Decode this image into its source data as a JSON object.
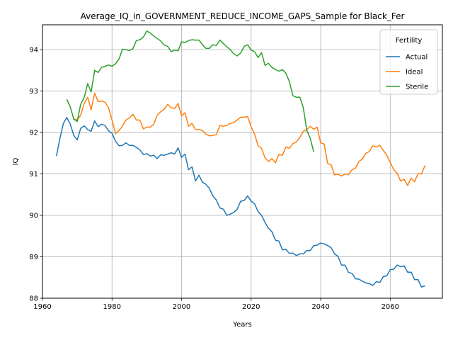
{
  "chart_data": {
    "type": "line",
    "title": "Average_IQ_in_GOVERNMENT_REDUCE_INCOME_GAPS_Sample for Black_Fer",
    "xlabel": "Years",
    "ylabel": "IQ",
    "xlim": [
      1960,
      2075
    ],
    "ylim": [
      88,
      94.6
    ],
    "xticks": [
      1960,
      1980,
      2000,
      2020,
      2040,
      2060
    ],
    "yticks": [
      88,
      89,
      90,
      91,
      92,
      93,
      94
    ],
    "grid": true,
    "legend": {
      "title": "Fertility",
      "location": "upper right"
    },
    "series": [
      {
        "name": "Actual",
        "color": "#1f77b4",
        "x": [
          1964,
          1965,
          1966,
          1967,
          1968,
          1969,
          1970,
          1971,
          1972,
          1973,
          1974,
          1975,
          1976,
          1977,
          1978,
          1979,
          1980,
          1981,
          1982,
          1983,
          1984,
          1985,
          1986,
          1987,
          1988,
          1989,
          1990,
          1991,
          1992,
          1993,
          1994,
          1995,
          1996,
          1997,
          1998,
          1999,
          2000,
          2001,
          2002,
          2003,
          2004,
          2005,
          2006,
          2007,
          2008,
          2009,
          2010,
          2011,
          2012,
          2013,
          2014,
          2015,
          2016,
          2017,
          2018,
          2019,
          2020,
          2021,
          2022,
          2023,
          2024,
          2025,
          2026,
          2027,
          2028,
          2029,
          2030,
          2031,
          2032,
          2033,
          2034,
          2035,
          2036,
          2037,
          2038,
          2039,
          2040,
          2041,
          2042,
          2043,
          2044,
          2045,
          2046,
          2047,
          2048,
          2049,
          2050,
          2051,
          2052,
          2053,
          2054,
          2055,
          2056,
          2057,
          2058,
          2059,
          2060,
          2061,
          2062,
          2063,
          2064,
          2065,
          2066,
          2067,
          2068,
          2069,
          2070
        ],
        "values": [
          91.43,
          91.85,
          92.22,
          92.36,
          92.2,
          91.93,
          91.82,
          92.1,
          92.16,
          92.07,
          92.03,
          92.28,
          92.14,
          92.2,
          92.17,
          92.04,
          91.98,
          91.79,
          91.68,
          91.69,
          91.75,
          91.69,
          91.69,
          91.64,
          91.58,
          91.47,
          91.49,
          91.43,
          91.45,
          91.37,
          91.46,
          91.45,
          91.48,
          91.51,
          91.48,
          91.63,
          91.4,
          91.48,
          91.1,
          91.17,
          90.83,
          90.97,
          90.8,
          90.75,
          90.65,
          90.47,
          90.37,
          90.18,
          90.15,
          90.0,
          90.03,
          90.07,
          90.15,
          90.34,
          90.36,
          90.47,
          90.34,
          90.28,
          90.09,
          90.0,
          89.83,
          89.69,
          89.6,
          89.4,
          89.38,
          89.17,
          89.18,
          89.08,
          89.09,
          89.03,
          89.07,
          89.07,
          89.15,
          89.15,
          89.27,
          89.28,
          89.33,
          89.31,
          89.27,
          89.22,
          89.07,
          89.01,
          88.8,
          88.8,
          88.62,
          88.6,
          88.47,
          88.46,
          88.41,
          88.37,
          88.35,
          88.31,
          88.4,
          88.38,
          88.52,
          88.54,
          88.69,
          88.7,
          88.8,
          88.76,
          88.78,
          88.63,
          88.63,
          88.45,
          88.45,
          88.27,
          88.3
        ]
      },
      {
        "name": "Ideal",
        "color": "#ff7f0e",
        "x": [
          1969,
          1970,
          1971,
          1972,
          1973,
          1974,
          1975,
          1976,
          1977,
          1978,
          1979,
          1980,
          1981,
          1982,
          1983,
          1984,
          1985,
          1986,
          1987,
          1988,
          1989,
          1990,
          1991,
          1992,
          1993,
          1994,
          1995,
          1996,
          1997,
          1998,
          1999,
          2000,
          2001,
          2002,
          2003,
          2004,
          2005,
          2006,
          2007,
          2008,
          2009,
          2010,
          2011,
          2012,
          2013,
          2014,
          2015,
          2016,
          2017,
          2018,
          2019,
          2020,
          2021,
          2022,
          2023,
          2024,
          2025,
          2026,
          2027,
          2028,
          2029,
          2030,
          2031,
          2032,
          2033,
          2034,
          2035,
          2036,
          2037,
          2038,
          2039,
          2040,
          2041,
          2042,
          2043,
          2044,
          2045,
          2046,
          2047,
          2048,
          2049,
          2050,
          2051,
          2052,
          2053,
          2054,
          2055,
          2056,
          2057,
          2058,
          2059,
          2060,
          2061,
          2062,
          2063,
          2064,
          2065,
          2066,
          2067,
          2068,
          2069,
          2070
        ],
        "values": [
          92.33,
          92.3,
          92.42,
          92.7,
          92.85,
          92.55,
          92.95,
          92.75,
          92.76,
          92.73,
          92.6,
          92.3,
          91.97,
          92.05,
          92.15,
          92.3,
          92.35,
          92.44,
          92.3,
          92.3,
          92.09,
          92.13,
          92.13,
          92.2,
          92.42,
          92.5,
          92.56,
          92.68,
          92.6,
          92.58,
          92.7,
          92.4,
          92.48,
          92.15,
          92.22,
          92.07,
          92.07,
          92.05,
          91.96,
          91.92,
          91.93,
          91.95,
          92.17,
          92.15,
          92.17,
          92.22,
          92.24,
          92.3,
          92.37,
          92.37,
          92.38,
          92.14,
          91.96,
          91.68,
          91.62,
          91.39,
          91.3,
          91.37,
          91.27,
          91.47,
          91.45,
          91.65,
          91.62,
          91.73,
          91.77,
          91.88,
          92.03,
          92.07,
          92.15,
          92.08,
          92.13,
          91.75,
          91.72,
          91.25,
          91.22,
          90.98,
          90.99,
          90.95,
          91.0,
          90.98,
          91.1,
          91.14,
          91.3,
          91.36,
          91.5,
          91.54,
          91.68,
          91.65,
          91.69,
          91.57,
          91.45,
          91.28,
          91.1,
          91.02,
          90.83,
          90.87,
          90.72,
          90.9,
          90.81,
          91.01,
          91.0,
          91.2
        ]
      },
      {
        "name": "Sterile",
        "color": "#2ca02c",
        "x": [
          1967,
          1968,
          1969,
          1970,
          1971,
          1972,
          1973,
          1974,
          1975,
          1976,
          1977,
          1978,
          1979,
          1980,
          1981,
          1982,
          1983,
          1984,
          1985,
          1986,
          1987,
          1988,
          1989,
          1990,
          1991,
          1992,
          1993,
          1994,
          1995,
          1996,
          1997,
          1998,
          1999,
          2000,
          2001,
          2002,
          2003,
          2004,
          2005,
          2006,
          2007,
          2008,
          2009,
          2010,
          2011,
          2012,
          2013,
          2014,
          2015,
          2016,
          2017,
          2018,
          2019,
          2020,
          2021,
          2022,
          2023,
          2024,
          2025,
          2026,
          2027,
          2028,
          2029,
          2030,
          2031,
          2032,
          2033,
          2034,
          2035,
          2036,
          2037,
          2038
        ],
        "values": [
          92.8,
          92.62,
          92.32,
          92.27,
          92.68,
          92.85,
          93.18,
          92.98,
          93.5,
          93.45,
          93.57,
          93.6,
          93.63,
          93.6,
          93.66,
          93.77,
          94.01,
          94.0,
          93.98,
          94.02,
          94.22,
          94.24,
          94.3,
          94.45,
          94.4,
          94.33,
          94.27,
          94.21,
          94.11,
          94.08,
          93.95,
          93.99,
          93.97,
          94.19,
          94.17,
          94.22,
          94.24,
          94.23,
          94.23,
          94.12,
          94.03,
          94.03,
          94.12,
          94.1,
          94.23,
          94.15,
          94.07,
          94.0,
          93.9,
          93.85,
          93.92,
          94.08,
          94.12,
          93.99,
          93.95,
          93.81,
          93.93,
          93.62,
          93.67,
          93.57,
          93.52,
          93.48,
          93.52,
          93.43,
          93.23,
          92.89,
          92.85,
          92.85,
          92.6,
          92.05,
          91.86,
          91.53
        ]
      }
    ]
  }
}
